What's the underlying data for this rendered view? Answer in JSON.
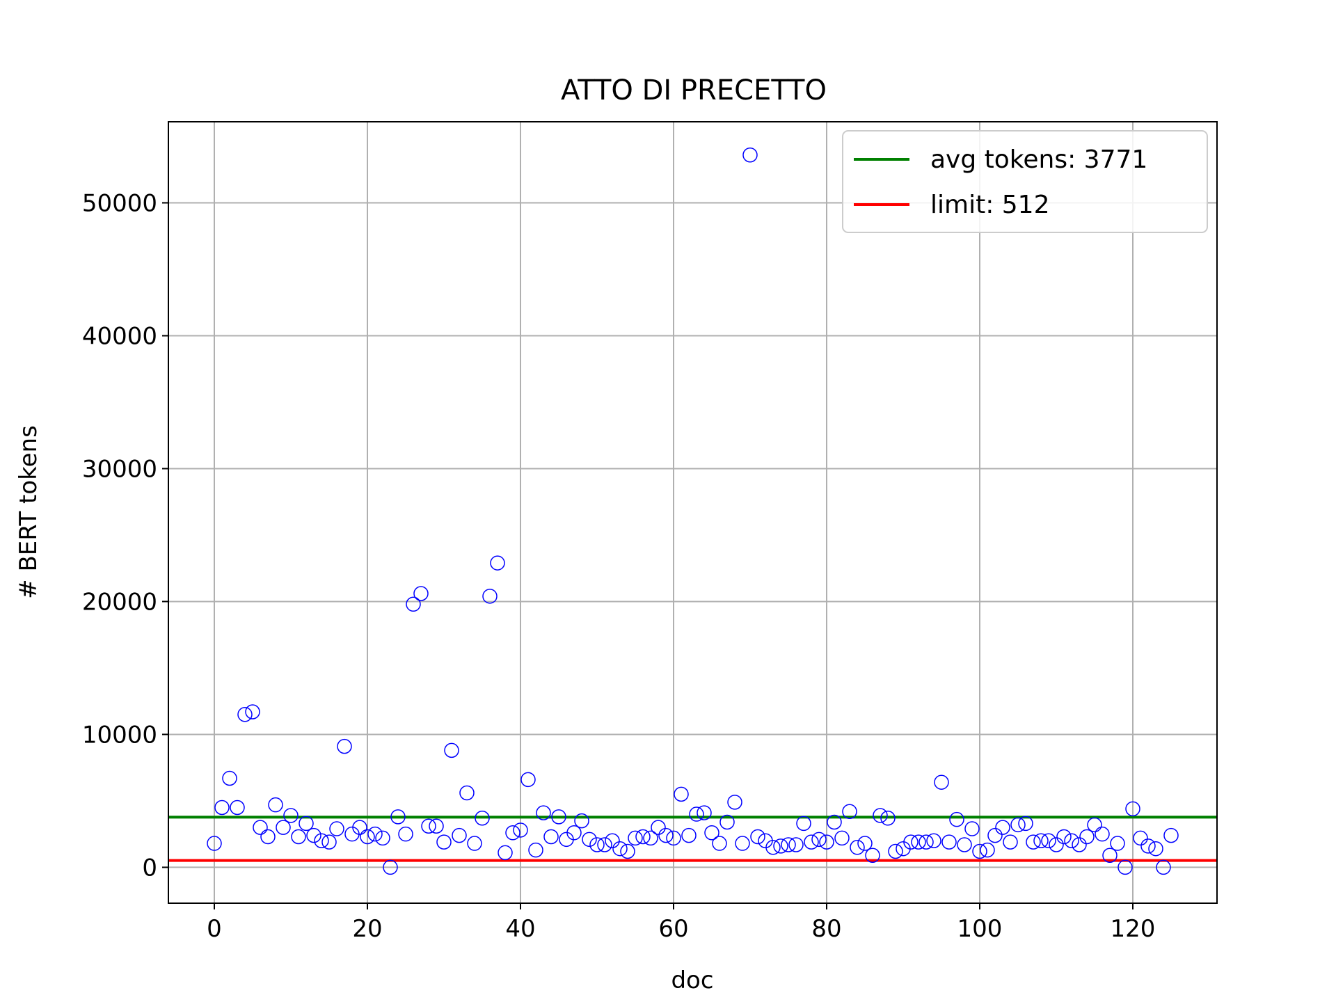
{
  "chart_data": {
    "type": "scatter",
    "title": "ATTO DI PRECETTO",
    "xlabel": "doc",
    "ylabel": "# BERT tokens",
    "xlim": [
      -6,
      131
    ],
    "ylim": [
      -2700,
      56100
    ],
    "xticks": [
      0,
      20,
      40,
      60,
      80,
      100,
      120
    ],
    "yticks": [
      0,
      10000,
      20000,
      30000,
      40000,
      50000
    ],
    "grid": true,
    "legend_position": "top-right",
    "marker_color": "#0000ff",
    "series": [
      {
        "type": "scatter",
        "x": [
          0,
          1,
          2,
          3,
          4,
          5,
          6,
          7,
          8,
          9,
          10,
          11,
          12,
          13,
          14,
          15,
          16,
          17,
          18,
          19,
          20,
          21,
          22,
          23,
          24,
          25,
          26,
          27,
          28,
          29,
          30,
          31,
          32,
          33,
          34,
          35,
          36,
          37,
          38,
          39,
          40,
          41,
          42,
          43,
          44,
          45,
          46,
          47,
          48,
          49,
          50,
          51,
          52,
          53,
          54,
          55,
          56,
          57,
          58,
          59,
          60,
          61,
          62,
          63,
          64,
          65,
          66,
          67,
          68,
          69,
          70,
          71,
          72,
          73,
          74,
          75,
          76,
          77,
          78,
          79,
          80,
          81,
          82,
          83,
          84,
          85,
          86,
          87,
          88,
          89,
          90,
          91,
          92,
          93,
          94,
          95,
          96,
          97,
          98,
          99,
          100,
          101,
          102,
          103,
          104,
          105,
          106,
          107,
          108,
          109,
          110,
          111,
          112,
          113,
          114,
          115,
          116,
          117,
          118,
          119,
          120,
          121,
          122,
          123,
          124,
          125
        ],
        "y": [
          1800,
          4500,
          6700,
          4500,
          11500,
          11700,
          3000,
          2300,
          4700,
          3000,
          3900,
          2300,
          3300,
          2400,
          2000,
          1900,
          2900,
          9100,
          2500,
          3000,
          2300,
          2500,
          2200,
          0,
          3800,
          2500,
          19800,
          20600,
          3100,
          3100,
          1900,
          8800,
          2400,
          5600,
          1800,
          3700,
          20400,
          22900,
          1100,
          2600,
          2800,
          6600,
          1300,
          4100,
          2300,
          3800,
          2100,
          2600,
          3500,
          2100,
          1700,
          1700,
          2000,
          1400,
          1200,
          2200,
          2300,
          2200,
          3000,
          2400,
          2200,
          5500,
          2400,
          4000,
          4100,
          2600,
          1800,
          3400,
          4900,
          1800,
          53600,
          2300,
          2000,
          1500,
          1600,
          1700,
          1700,
          3300,
          1900,
          2100,
          1900,
          3400,
          2200,
          4200,
          1500,
          1800,
          900,
          3900,
          3700,
          1200,
          1400,
          1900,
          1900,
          1900,
          2000,
          6400,
          1900,
          3600,
          1700,
          2900,
          1200,
          1300,
          2400,
          3000,
          1900,
          3200,
          3300,
          1900,
          2000,
          2000,
          1700,
          2300,
          2000,
          1700,
          2300,
          3200,
          2500,
          900,
          1800,
          0,
          4400,
          2200,
          1600,
          1400,
          0,
          2400
        ]
      },
      {
        "type": "hline",
        "name": "avg tokens: 3771",
        "value": 3771,
        "color": "#008000"
      },
      {
        "type": "hline",
        "name": "limit: 512",
        "value": 512,
        "color": "#ff0000"
      }
    ]
  }
}
